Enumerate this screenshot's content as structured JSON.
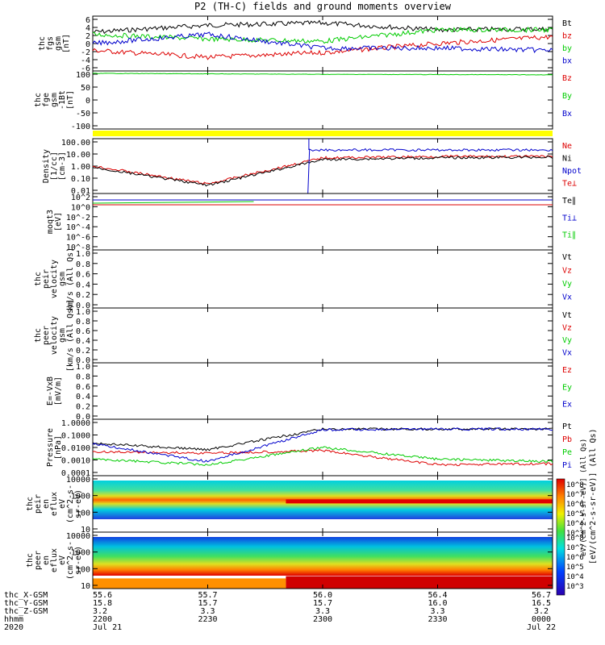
{
  "title": "P2 (TH-C) fields and ground moments overview",
  "colorbar_label": "[eV/(cm^2-s-sr-eV)] (All Qs)",
  "colorbar_label_overlap": "eV/(cm^2-s-sr-eV)] (All Qs)",
  "colorbar_ticks": [
    "10^8",
    "10^7",
    "10^6",
    "10^5",
    "10^4",
    "10^3"
  ],
  "colorbar_ticks_lower": [
    "10^8",
    "10^7",
    "10^6",
    "10^5",
    "10^4",
    "10^3"
  ],
  "footer": {
    "rows": [
      {
        "label": "thc_X-GSM",
        "values": [
          "55.6",
          "55.7",
          "56.0",
          "56.4",
          "56.7"
        ]
      },
      {
        "label": "thc_Y-GSM",
        "values": [
          "15.8",
          "15.7",
          "15.7",
          "16.0",
          "16.5"
        ]
      },
      {
        "label": "thc_Z-GSM",
        "values": [
          "3.2",
          "3.3",
          "3.3",
          "3.3",
          "3.2"
        ]
      },
      {
        "label": "hhmm",
        "values": [
          "2200",
          "2230",
          "2300",
          "2330",
          "0000"
        ]
      },
      {
        "label": "2020",
        "values": [
          "Jul 21",
          "",
          "",
          "",
          "Jul 22"
        ]
      }
    ]
  },
  "colors": {
    "black": "#000000",
    "red": "#dd0000",
    "green": "#00cc00",
    "blue": "#0000cc",
    "yellow": "#ffff00"
  },
  "chart_data": [
    {
      "type": "line",
      "panel": "fgs",
      "ylabel": [
        "thc",
        "fgs",
        "gsm",
        "[nT]"
      ],
      "yticks": [
        "6",
        "4",
        "2",
        "0",
        "-2",
        "-4",
        "-6"
      ],
      "ylim": [
        -6,
        6
      ],
      "legend": [
        {
          "name": "Bt",
          "color": "#000000"
        },
        {
          "name": "bz",
          "color": "#dd0000"
        },
        {
          "name": "by",
          "color": "#00cc00"
        },
        {
          "name": "bx",
          "color": "#0000cc"
        }
      ],
      "x": [
        "2200",
        "2230",
        "2300",
        "2330",
        "0000"
      ],
      "series": [
        {
          "name": "Bt",
          "values": [
            2.5,
            4.0,
            4.5,
            3.0,
            3.2
          ]
        },
        {
          "name": "bz",
          "values": [
            -1.5,
            -3.0,
            -2.0,
            0.0,
            1.5
          ]
        },
        {
          "name": "by",
          "values": [
            2.0,
            1.0,
            0.5,
            3.0,
            3.0
          ]
        },
        {
          "name": "bx",
          "values": [
            0.0,
            2.0,
            -1.0,
            -1.0,
            -1.5
          ]
        }
      ]
    },
    {
      "type": "line",
      "panel": "fge",
      "ylabel": [
        "thc",
        "fge",
        "gsm",
        "-1Bt",
        "[nT]"
      ],
      "yticks": [
        "100",
        "50",
        "0",
        "-50",
        "-100"
      ],
      "ylim": [
        -130,
        110
      ],
      "legend": [
        {
          "name": "Bz",
          "color": "#dd0000"
        },
        {
          "name": "By",
          "color": "#00cc00"
        },
        {
          "name": "Bx",
          "color": "#0000cc"
        }
      ],
      "series": [
        {
          "name": "By",
          "values": [
            100,
            98,
            96,
            95,
            94
          ]
        }
      ]
    },
    {
      "type": "line",
      "panel": "density",
      "ylabel": [
        "Density",
        "[1/cc]",
        "[cm-3]"
      ],
      "yticks": [
        "100.00",
        "10.00",
        "1.00",
        "0.10",
        "0.01"
      ],
      "scale": "log",
      "legend": [
        {
          "name": "Ne",
          "color": "#dd0000"
        },
        {
          "name": "Ni",
          "color": "#000000"
        },
        {
          "name": "Npot",
          "color": "#0000cc"
        },
        {
          "name": "Te⊥",
          "color": "#dd0000"
        }
      ],
      "x": [
        "2200",
        "2230",
        "2300",
        "2330",
        "0000"
      ],
      "series": [
        {
          "name": "Ne",
          "values": [
            1.0,
            0.05,
            4.0,
            5.0,
            5.0
          ]
        },
        {
          "name": "Ni",
          "values": [
            0.8,
            0.04,
            3.0,
            4.0,
            4.5
          ]
        },
        {
          "name": "Npot",
          "values": [
            null,
            null,
            15,
            15,
            15
          ]
        }
      ]
    },
    {
      "type": "line",
      "panel": "temp",
      "ylabel": [
        "moqt3",
        "[eV]"
      ],
      "yticks": [
        "10^2",
        "10^0",
        "10^-2",
        "10^-4",
        "10^-6",
        "10^-8"
      ],
      "scale": "log",
      "legend": [
        {
          "name": "Te∥",
          "color": "#000000"
        },
        {
          "name": "Ti⊥",
          "color": "#0000cc"
        },
        {
          "name": "Ti∥",
          "color": "#00cc00"
        }
      ]
    },
    {
      "type": "line",
      "panel": "peir_velocity",
      "ylabel": [
        "thc",
        "peir",
        "velocity",
        "gsm",
        "km/s (All Qs)"
      ],
      "yticks": [
        "1.0",
        "0.8",
        "0.6",
        "0.4",
        "0.2",
        "0.0"
      ],
      "ylim": [
        0,
        1
      ],
      "legend": [
        {
          "name": "Vt",
          "color": "#000000"
        },
        {
          "name": "Vz",
          "color": "#dd0000"
        },
        {
          "name": "Vy",
          "color": "#00cc00"
        },
        {
          "name": "Vx",
          "color": "#0000cc"
        }
      ]
    },
    {
      "type": "line",
      "panel": "peer_velocity",
      "ylabel": [
        "thc",
        "peer",
        "velocity",
        "gsm",
        "[km/s (All Qs)]"
      ],
      "yticks": [
        "1.0",
        "0.8",
        "0.6",
        "0.4",
        "0.2",
        "0.0"
      ],
      "ylim": [
        0,
        1
      ],
      "legend": [
        {
          "name": "Vt",
          "color": "#000000"
        },
        {
          "name": "Vz",
          "color": "#dd0000"
        },
        {
          "name": "Vy",
          "color": "#00cc00"
        },
        {
          "name": "Vx",
          "color": "#0000cc"
        }
      ]
    },
    {
      "type": "line",
      "panel": "efield",
      "ylabel": [
        "E=-VxB",
        "[mV/m]"
      ],
      "yticks": [
        "1.0",
        "0.8",
        "0.6",
        "0.4",
        "0.2",
        "0.0"
      ],
      "ylim": [
        0,
        1
      ],
      "legend": [
        {
          "name": "Ez",
          "color": "#dd0000"
        },
        {
          "name": "Ey",
          "color": "#00cc00"
        },
        {
          "name": "Ex",
          "color": "#0000cc"
        }
      ]
    },
    {
      "type": "line",
      "panel": "pressure",
      "ylabel": [
        "Pressure",
        "[nPa]"
      ],
      "yticks": [
        "1.0000",
        "0.1000",
        "0.0100",
        "0.0010",
        "0.0001"
      ],
      "scale": "log",
      "legend": [
        {
          "name": "Pt",
          "color": "#000000"
        },
        {
          "name": "Pb",
          "color": "#dd0000"
        },
        {
          "name": "Pe",
          "color": "#00cc00"
        },
        {
          "name": "Pi",
          "color": "#0000cc"
        }
      ],
      "x": [
        "2200",
        "2230",
        "2300",
        "2330",
        "0000"
      ],
      "series": [
        {
          "name": "Pt",
          "values": [
            0.02,
            0.007,
            0.2,
            0.2,
            0.2
          ]
        },
        {
          "name": "Pb",
          "values": [
            0.005,
            0.004,
            0.006,
            0.0006,
            0.0007
          ]
        },
        {
          "name": "Pe",
          "values": [
            0.0015,
            0.0006,
            0.01,
            0.0015,
            0.001
          ]
        },
        {
          "name": "Pi",
          "values": [
            0.018,
            0.001,
            0.18,
            0.2,
            0.2
          ]
        }
      ]
    },
    {
      "type": "heatmap",
      "panel": "peir_eflux",
      "ylabel": [
        "thc",
        "peir",
        "en",
        "eflux",
        "eV",
        "(cm^2-s-",
        "sr-eV)"
      ],
      "yticks": [
        "10000",
        "1000",
        "100",
        "10"
      ],
      "scale": "log"
    },
    {
      "type": "heatmap",
      "panel": "peer_eflux",
      "ylabel": [
        "thc",
        "peer",
        "en",
        "eflux",
        "eV",
        "(cm^2-s-",
        "sr-eV)"
      ],
      "yticks": [
        "10000",
        "1000",
        "100",
        "10"
      ],
      "scale": "log"
    }
  ]
}
